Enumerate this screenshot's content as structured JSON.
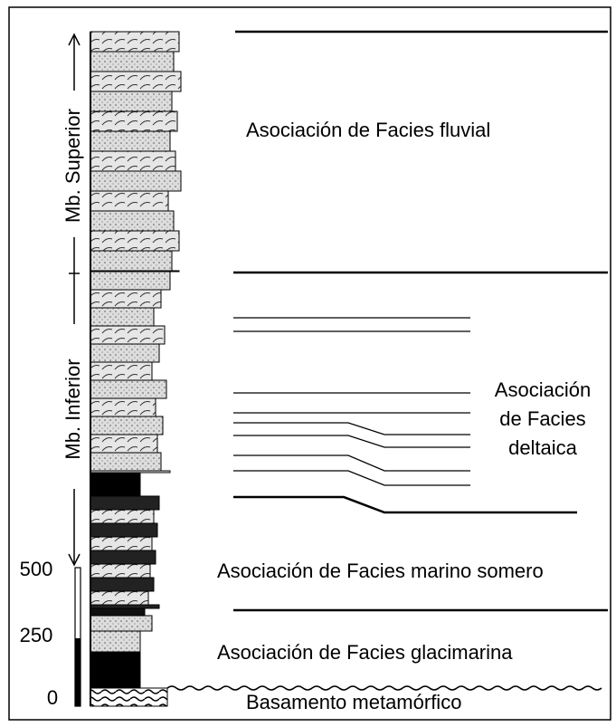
{
  "members": [
    "Mb. Superior",
    "Mb. Inferior"
  ],
  "facies": {
    "fluvial": "Asociación de Facies fluvial",
    "deltaica": [
      "Asociación",
      "de Facies",
      "deltaica"
    ],
    "marino_somero": "Asociación de Facies marino somero",
    "glacimarina": "Asociación de Facies glacimarina",
    "basamento": "Basamento metamórfico"
  },
  "scale": {
    "labels": [
      "500",
      "250",
      "0"
    ]
  }
}
